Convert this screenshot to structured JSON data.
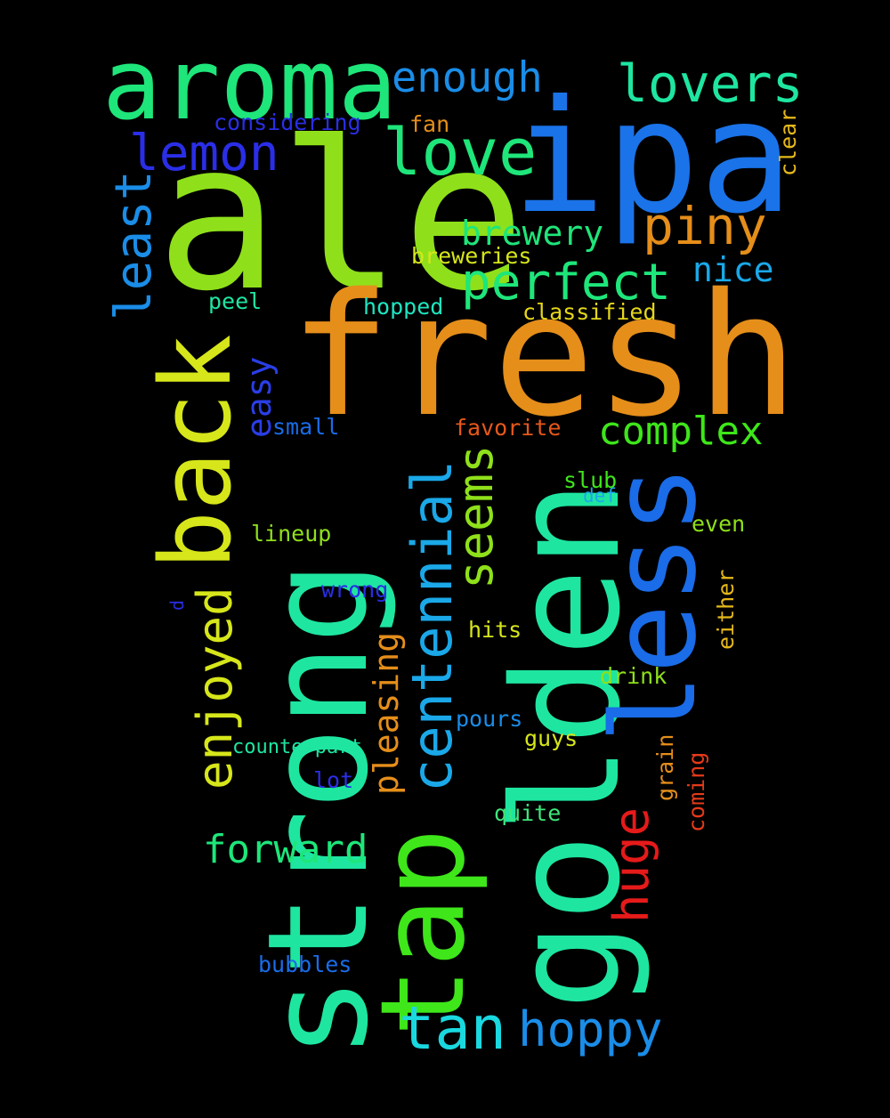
{
  "words": [
    {
      "id": "ipa",
      "text": "ipa",
      "color": "#1a73e8"
    },
    {
      "id": "ale",
      "text": "ale",
      "color": "#8fe01a"
    },
    {
      "id": "fresh",
      "text": "fresh",
      "color": "#e58e1a"
    },
    {
      "id": "strong",
      "text": "strong",
      "color": "#1ee6a0",
      "rotated": true
    },
    {
      "id": "golden",
      "text": "golden",
      "color": "#1ee6a0",
      "rotated": true
    },
    {
      "id": "tap",
      "text": "tap",
      "color": "#3ee61a",
      "rotated": true
    },
    {
      "id": "less",
      "text": "less",
      "color": "#1a6ce8",
      "rotated": true
    },
    {
      "id": "aroma",
      "text": "aroma",
      "color": "#1ee67a"
    },
    {
      "id": "back",
      "text": "back",
      "color": "#d6e61a",
      "rotated": true
    },
    {
      "id": "love",
      "text": "love",
      "color": "#1ee67a"
    },
    {
      "id": "lovers",
      "text": "lovers",
      "color": "#1ee6a0"
    },
    {
      "id": "enough",
      "text": "enough",
      "color": "#1a8de8"
    },
    {
      "id": "lemon",
      "text": "lemon",
      "color": "#2a2ee6"
    },
    {
      "id": "piny",
      "text": "piny",
      "color": "#e58e1a"
    },
    {
      "id": "perfect",
      "text": "perfect",
      "color": "#1ee67a"
    },
    {
      "id": "brewery",
      "text": "brewery",
      "color": "#1ee67a"
    },
    {
      "id": "least",
      "text": "least",
      "color": "#1a8de8",
      "rotated": true
    },
    {
      "id": "centennial",
      "text": "centennial",
      "color": "#1aa8e8",
      "rotated": true
    },
    {
      "id": "seems",
      "text": "seems",
      "color": "#8fe01a",
      "rotated": true
    },
    {
      "id": "enjoyed",
      "text": "enjoyed",
      "color": "#d6e61a",
      "rotated": true
    },
    {
      "id": "pleasing",
      "text": "pleasing",
      "color": "#e58e1a",
      "rotated": true
    },
    {
      "id": "easy",
      "text": "easy",
      "color": "#2a3ee6",
      "rotated": true
    },
    {
      "id": "complex",
      "text": "complex",
      "color": "#3ee61a"
    },
    {
      "id": "nice",
      "text": "nice",
      "color": "#1aa8e8"
    },
    {
      "id": "tan",
      "text": "tan",
      "color": "#1ad8e0"
    },
    {
      "id": "hoppy",
      "text": "hoppy",
      "color": "#1a8de8"
    },
    {
      "id": "forward",
      "text": "forward",
      "color": "#1ee67a"
    },
    {
      "id": "huge",
      "text": "huge",
      "color": "#e61a1a",
      "rotated": true
    },
    {
      "id": "considering",
      "text": "considering",
      "color": "#2a2ee6"
    },
    {
      "id": "fan",
      "text": "fan",
      "color": "#e58e1a"
    },
    {
      "id": "clear",
      "text": "clear",
      "color": "#e5b81a",
      "rotated": true
    },
    {
      "id": "breweries",
      "text": "breweries",
      "color": "#d6e61a"
    },
    {
      "id": "peel",
      "text": "peel",
      "color": "#1ee6a0"
    },
    {
      "id": "hopped",
      "text": "hopped",
      "color": "#1ee6c0"
    },
    {
      "id": "classified",
      "text": "classified",
      "color": "#e5d61a"
    },
    {
      "id": "small",
      "text": "small",
      "color": "#1a6ce8"
    },
    {
      "id": "favorite",
      "text": "favorite",
      "color": "#e5581a"
    },
    {
      "id": "slub",
      "text": "slub",
      "color": "#3ee61a"
    },
    {
      "id": "def",
      "text": "def",
      "color": "#1aa8e8"
    },
    {
      "id": "lineup",
      "text": "lineup",
      "color": "#8fe01a"
    },
    {
      "id": "even",
      "text": "even",
      "color": "#8fe01a"
    },
    {
      "id": "wrong",
      "text": "wrong",
      "color": "#2a2ee6"
    },
    {
      "id": "d",
      "text": "d",
      "color": "#2a2ee6",
      "rotated": true
    },
    {
      "id": "either",
      "text": "either",
      "color": "#e5b81a",
      "rotated": true
    },
    {
      "id": "hits",
      "text": "hits",
      "color": "#d6e61a"
    },
    {
      "id": "drink",
      "text": "drink",
      "color": "#8fe01a"
    },
    {
      "id": "pours",
      "text": "pours",
      "color": "#1a8de8"
    },
    {
      "id": "grain",
      "text": "grain",
      "color": "#e58e1a",
      "rotated": true
    },
    {
      "id": "counterpart",
      "text": "counterpart",
      "color": "#1ee6a0"
    },
    {
      "id": "guys",
      "text": "guys",
      "color": "#d6e61a"
    },
    {
      "id": "coming",
      "text": "coming",
      "color": "#e53a1a",
      "rotated": true
    },
    {
      "id": "lot",
      "text": "lot",
      "color": "#2a2ee6"
    },
    {
      "id": "quite",
      "text": "quite",
      "color": "#3ee67a"
    },
    {
      "id": "bubbles",
      "text": "bubbles",
      "color": "#1a6ce8"
    }
  ]
}
